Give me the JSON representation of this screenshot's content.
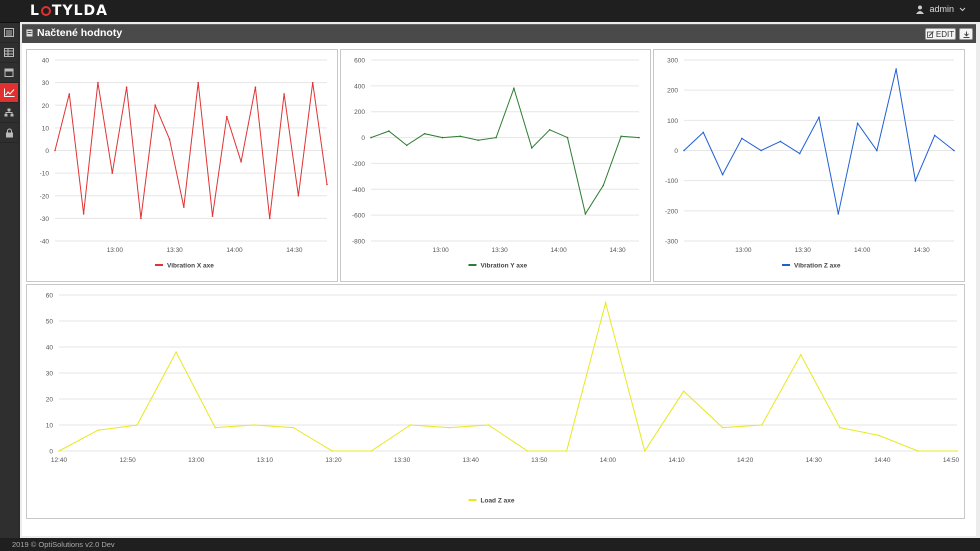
{
  "app": {
    "logo_text": "LOTYLDA",
    "user_name": "admin"
  },
  "sidebar": {
    "items": [
      {
        "icon": "dashboard-icon",
        "active": false
      },
      {
        "icon": "table-icon",
        "active": false
      },
      {
        "icon": "archive-icon",
        "active": false
      },
      {
        "icon": "line-chart-icon",
        "active": true
      },
      {
        "icon": "sitemap-icon",
        "active": false
      },
      {
        "icon": "lock-icon",
        "active": false
      }
    ]
  },
  "panel": {
    "title": "Načtené hodnoty",
    "edit_label": "EDIT",
    "download_icon": "download-icon"
  },
  "footer": {
    "text": "2019 © OptiSolutions v2.0 Dev"
  },
  "chart_data": [
    {
      "type": "line",
      "series": [
        {
          "name": "Vibration X axe",
          "color": "#e03333",
          "values": [
            0,
            25,
            -28,
            30,
            -10,
            28,
            -30,
            20,
            5,
            -25,
            30,
            -29,
            15,
            -5,
            28,
            -30,
            25,
            -20,
            30,
            -15
          ]
        }
      ],
      "xticks": [
        "13:00",
        "13:30",
        "14:00",
        "14:30"
      ],
      "yticks": [
        "40",
        "30",
        "20",
        "10",
        "0",
        "-10",
        "-20",
        "-30",
        "-40"
      ],
      "ylim": [
        -40,
        40
      ],
      "legend": "bottom"
    },
    {
      "type": "line",
      "series": [
        {
          "name": "Vibration Y axe",
          "color": "#2e7d32",
          "values": [
            0,
            50,
            -60,
            30,
            0,
            10,
            -20,
            0,
            380,
            -80,
            60,
            0,
            -590,
            -370,
            10,
            0
          ]
        }
      ],
      "xticks": [
        "13:00",
        "13:30",
        "14:00",
        "14:30"
      ],
      "yticks": [
        "600",
        "400",
        "200",
        "0",
        "-200",
        "-400",
        "-600",
        "-800"
      ],
      "ylim": [
        -800,
        600
      ],
      "legend": "bottom"
    },
    {
      "type": "line",
      "series": [
        {
          "name": "Vibration Z axe",
          "color": "#1f5fd6",
          "values": [
            0,
            60,
            -80,
            40,
            0,
            30,
            -10,
            110,
            -210,
            90,
            0,
            270,
            -100,
            50,
            0
          ]
        }
      ],
      "xticks": [
        "13:00",
        "13:30",
        "14:00",
        "14:30"
      ],
      "yticks": [
        "300",
        "200",
        "100",
        "0",
        "-100",
        "-200",
        "-300"
      ],
      "ylim": [
        -300,
        300
      ],
      "legend": "bottom"
    },
    {
      "type": "line",
      "series": [
        {
          "name": "Load Z axe",
          "color": "#e8e820",
          "values": [
            0,
            8,
            10,
            38,
            9,
            10,
            9,
            0,
            0,
            10,
            9,
            10,
            0,
            0,
            57,
            0,
            23,
            9,
            10,
            37,
            9,
            6,
            0,
            0
          ]
        }
      ],
      "xticks": [
        "12:40",
        "12:50",
        "13:00",
        "13:10",
        "13:20",
        "13:30",
        "13:40",
        "13:50",
        "14:00",
        "14:10",
        "14:20",
        "14:30",
        "14:40",
        "14:50"
      ],
      "yticks": [
        "60",
        "50",
        "40",
        "30",
        "20",
        "10",
        "0"
      ],
      "ylim": [
        0,
        60
      ],
      "legend": "bottom"
    }
  ]
}
